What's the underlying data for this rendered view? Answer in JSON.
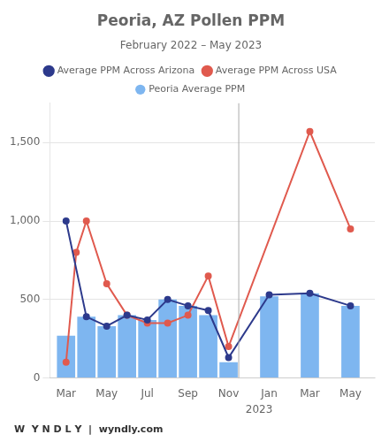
{
  "chart_data": {
    "type": "bar",
    "title": "Peoria, AZ Pollen PPM",
    "subtitle": "February 2022 – May 2023",
    "footer": "W  Y N D L Y  |  wyndly.com",
    "xlim": [
      -0.8,
      15.2
    ],
    "xticks": [
      {
        "value": 0,
        "label": "Mar"
      },
      {
        "value": 2,
        "label": "May"
      },
      {
        "value": 4,
        "label": "Jul"
      },
      {
        "value": 6,
        "label": "Sep"
      },
      {
        "value": 8,
        "label": "Nov"
      },
      {
        "value": 10,
        "label": "Jan"
      },
      {
        "value": 12,
        "label": "Mar"
      },
      {
        "value": 14,
        "label": "May"
      }
    ],
    "ylim": [
      0,
      1750
    ],
    "yticks": [
      0,
      500,
      {
        "value": 1000,
        "label": "1,000"
      },
      {
        "value": 1500,
        "label": "1,500"
      }
    ],
    "grid": "y",
    "legend": "top",
    "series": [
      {
        "name": "Peoria Average PPM",
        "type": "bar",
        "color": "#7EB6F0",
        "x": [
          0,
          1,
          2,
          3,
          4,
          5,
          6,
          7,
          8,
          10,
          12,
          14
        ],
        "values": [
          270,
          390,
          330,
          400,
          370,
          500,
          460,
          400,
          100,
          520,
          540,
          460
        ]
      },
      {
        "name": "Average PPM Across Arizona",
        "type": "line",
        "color": "#2D3A8C",
        "marker": "o",
        "x": [
          0,
          1,
          2,
          3,
          4,
          5,
          6,
          7,
          8,
          10,
          12,
          14
        ],
        "values": [
          1000,
          390,
          330,
          400,
          370,
          500,
          460,
          430,
          130,
          530,
          540,
          460
        ]
      },
      {
        "name": "Average PPM Across USA",
        "type": "line",
        "color": "#E05A4E",
        "marker": "o",
        "x": [
          0,
          0.5,
          1,
          2,
          3,
          4,
          5,
          6,
          7,
          8,
          12,
          14
        ],
        "values": [
          100,
          800,
          1000,
          600,
          400,
          350,
          350,
          400,
          650,
          200,
          1570,
          950
        ]
      }
    ],
    "annotations": [
      {
        "text": "2023",
        "x": 9.5
      }
    ],
    "vlines": [
      8.5
    ]
  }
}
